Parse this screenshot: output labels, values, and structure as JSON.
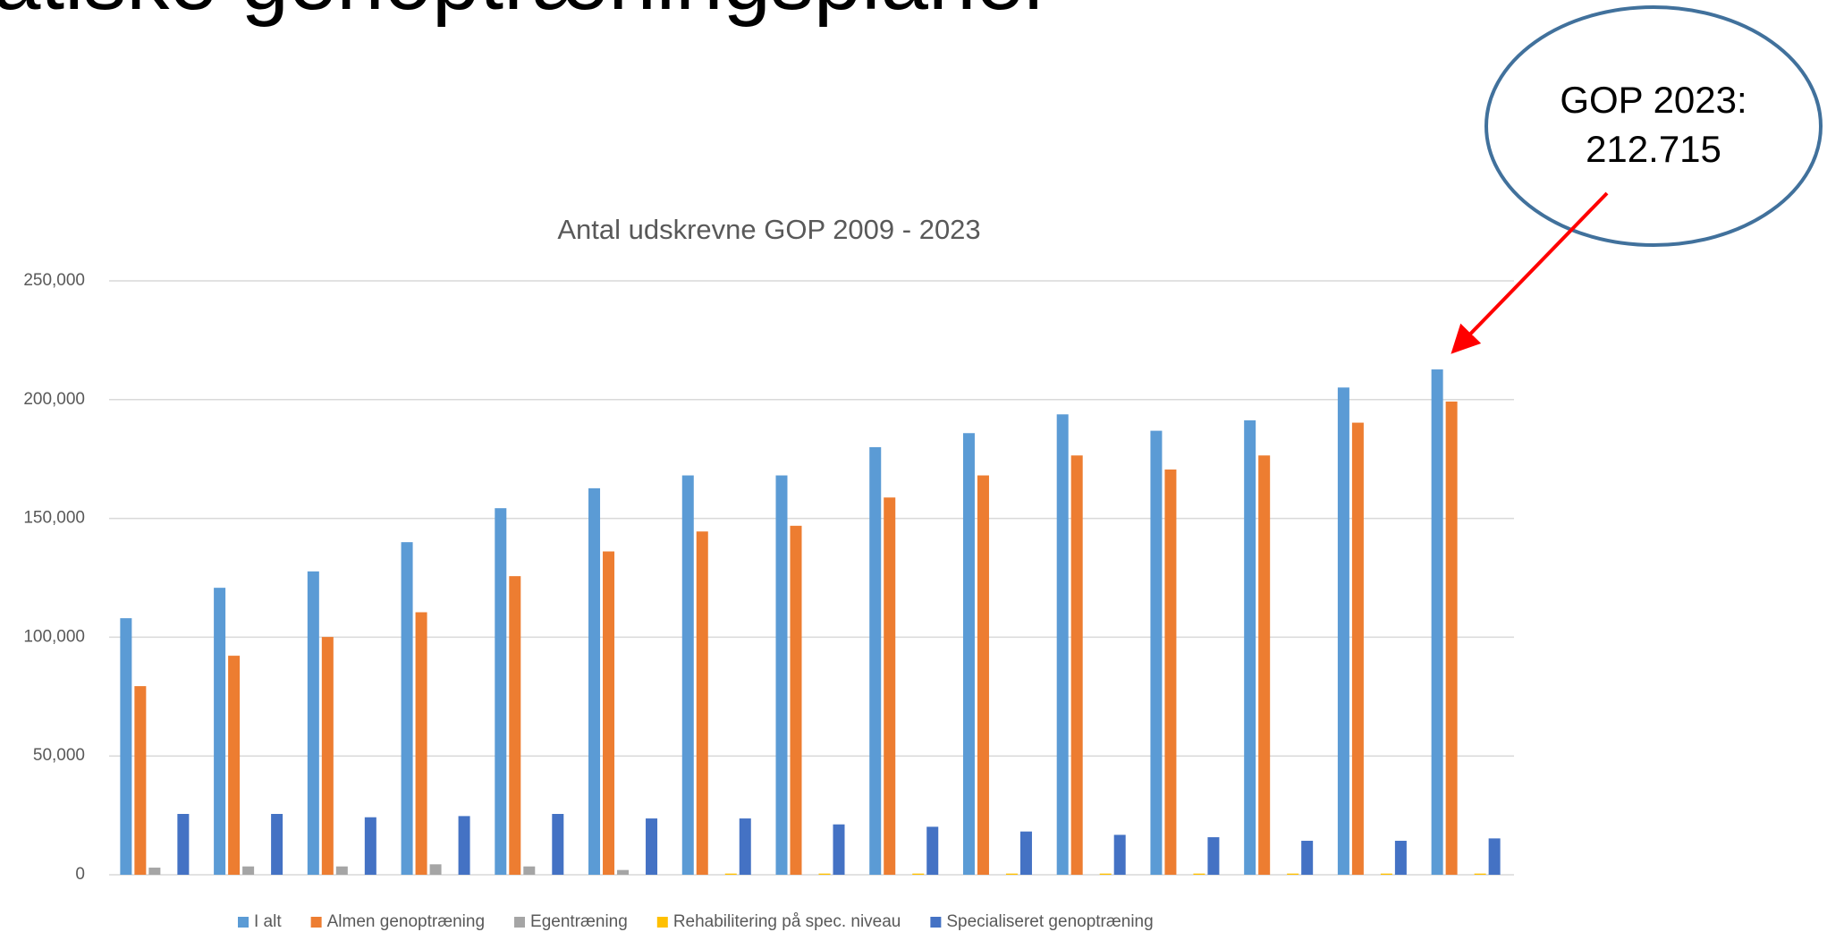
{
  "heading": "atiske genoptræningsplaner",
  "chart_data": {
    "type": "bar",
    "title": "Antal udskrevne GOP 2009 - 2023",
    "categories": [
      null,
      null,
      null,
      null,
      null,
      null,
      null,
      null,
      null,
      null,
      null,
      null,
      null,
      null,
      null
    ],
    "series": [
      {
        "name": "I alt",
        "color": "#5b9bd5",
        "values": [
          108000,
          120800,
          127700,
          140000,
          154300,
          162700,
          168100,
          168100,
          180000,
          185900,
          193800,
          186900,
          191300,
          205100,
          212715
        ]
      },
      {
        "name": "Almen genoptræning",
        "color": "#ed7d31",
        "values": [
          79400,
          92200,
          100100,
          110500,
          125700,
          136100,
          144500,
          146900,
          158800,
          168100,
          176500,
          170600,
          176500,
          190300,
          199200
        ]
      },
      {
        "name": "Egentræning",
        "color": "#a5a5a5",
        "values": [
          3000,
          3500,
          3500,
          4400,
          3500,
          2000,
          0,
          0,
          0,
          0,
          0,
          0,
          0,
          0,
          0
        ]
      },
      {
        "name": "Rehabilitering på spec. niveau",
        "color": "#ffc000",
        "values": [
          0,
          0,
          0,
          0,
          0,
          0,
          500,
          500,
          500,
          500,
          500,
          500,
          500,
          500,
          500
        ]
      },
      {
        "name": "Specialiseret genoptræning",
        "color": "#4472c4",
        "values": [
          25600,
          25600,
          24200,
          24700,
          25600,
          23700,
          23700,
          21200,
          20200,
          18200,
          16800,
          15800,
          14300,
          14300,
          15300
        ]
      }
    ],
    "ylim": [
      0,
      250000
    ],
    "yticks": [
      0,
      {
        "value": 50000,
        "label": "50,000"
      },
      {
        "value": 100000,
        "label": "100,000"
      },
      {
        "value": 150000,
        "label": "150,000"
      },
      {
        "value": 200000,
        "label": "200,000"
      },
      {
        "value": 250000,
        "label": "250,000"
      }
    ],
    "grid": true,
    "legend": "bottom",
    "annotation": [
      "GOP 2023:",
      "212.715"
    ]
  }
}
